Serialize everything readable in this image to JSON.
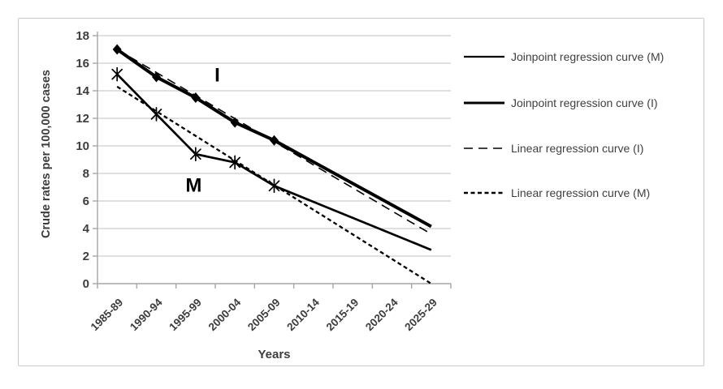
{
  "colors": {
    "line": "#000000",
    "grid": "#c2c2c2",
    "axis": "#a6a6a6",
    "text": "#3d3d3d",
    "border": "#c9c9c9",
    "background": "#ffffff"
  },
  "chart_data": {
    "type": "line",
    "title": "",
    "xlabel": "Years",
    "ylabel": "Crude rates per 100,000 cases",
    "categories": [
      "1985-89",
      "1990-94",
      "1995-99",
      "2000-04",
      "2005-09",
      "2010-14",
      "2015-19",
      "2020-24",
      "2025-29"
    ],
    "ylim": [
      0,
      18
    ],
    "ytick_step": 2,
    "grid": true,
    "legend_position": "right",
    "series": [
      {
        "id": "linear-regression-i",
        "name": "Linear regression curve (I)",
        "line": "long-dash",
        "width": 1.6,
        "marker": "none",
        "x": [
          0,
          8
        ],
        "y": [
          17.0,
          3.6
        ]
      },
      {
        "id": "linear-regression-m",
        "name": "Linear regression curve (M)",
        "line": "short-dash",
        "width": 2.3,
        "marker": "none",
        "x": [
          0,
          8
        ],
        "y": [
          14.3,
          0.0
        ]
      },
      {
        "id": "joinpoint-m",
        "name": "Joinpoint regression curve (M)",
        "line": "solid",
        "width": 2.7,
        "marker": "asterisk",
        "x": [
          0,
          1,
          2,
          3,
          4,
          8
        ],
        "y": [
          15.2,
          12.3,
          9.4,
          8.8,
          7.1,
          2.45
        ],
        "markers_at": [
          0,
          1,
          2,
          3,
          4
        ]
      },
      {
        "id": "joinpoint-i",
        "name": "Joinpoint regression curve (I)",
        "line": "solid",
        "width": 4,
        "marker": "diamond",
        "x": [
          0,
          1,
          2,
          3,
          4,
          8
        ],
        "y": [
          17.0,
          15.0,
          13.5,
          11.7,
          10.4,
          4.15
        ],
        "markers_at": [
          0,
          1,
          2,
          3,
          4
        ]
      }
    ],
    "annotations": [
      {
        "text": "I",
        "x": 2.55,
        "y": 15.2
      },
      {
        "text": "M",
        "x": 1.95,
        "y": 7.2
      }
    ],
    "legend": [
      {
        "label": "Joinpoint regression curve (M)",
        "line": "solid",
        "width": 2.2
      },
      {
        "label": "Joinpoint regression curve (I)",
        "line": "solid",
        "width": 3
      },
      {
        "label": "Linear regression curve (I)",
        "line": "long-dash",
        "width": 1.6
      },
      {
        "label": "Linear regression curve (M)",
        "line": "short-dash",
        "width": 2.6
      }
    ]
  }
}
